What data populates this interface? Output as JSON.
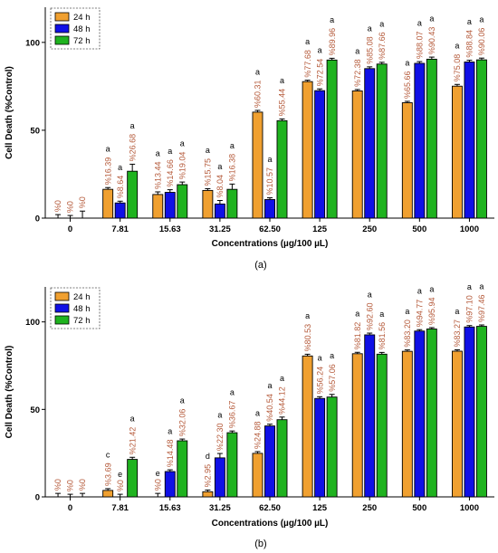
{
  "series_colors": [
    "#f0a030",
    "#1010e6",
    "#1fb31f"
  ],
  "chart_data": [
    {
      "type": "bar",
      "panel_label": "(a)",
      "ylabel": "Cell Death (%Control)",
      "xlabel": "Concentrations (µg/100 µL)",
      "ylim": [
        0,
        120
      ],
      "yticks": [
        0,
        50,
        100
      ],
      "legend_placement": "top-left",
      "categories": [
        "0",
        "7.81",
        "15.63",
        "31.25",
        "62.50",
        "125",
        "250",
        "500",
        "1000"
      ],
      "series": [
        {
          "name": "24 h",
          "values": [
            0,
            16.39,
            13.44,
            15.75,
            60.31,
            77.68,
            72.38,
            65.66,
            75.08
          ],
          "errors": [
            2,
            1,
            1.5,
            1,
            1,
            0.8,
            0.8,
            0.8,
            1
          ],
          "labels": [
            "%0",
            "%16.39",
            "%13.44",
            "%15.75",
            "%60.31",
            "%77.68",
            "%72.38",
            "%65.66",
            "%75.08"
          ],
          "letters": [
            "",
            "a",
            "a",
            "a",
            "a",
            "a",
            "a",
            "a",
            "a"
          ]
        },
        {
          "name": "48 h",
          "values": [
            0,
            8.64,
            14.66,
            8.04,
            10.57,
            72.54,
            85.08,
            88.07,
            88.84
          ],
          "errors": [
            1.5,
            1,
            1.5,
            2,
            1,
            1,
            1,
            1,
            1
          ],
          "labels": [
            "%0",
            "%8.64",
            "%14.66",
            "%8.04",
            "%10.57",
            "%72.54",
            "%85.08",
            "%88.07",
            "%88.84"
          ],
          "letters": [
            "",
            "a",
            "a",
            "a",
            "a",
            "a",
            "a",
            "a",
            "a"
          ]
        },
        {
          "name": "72 h",
          "values": [
            0,
            26.68,
            19.04,
            16.38,
            55.44,
            89.96,
            87.66,
            90.43,
            90.06
          ],
          "errors": [
            4,
            4,
            1.5,
            3,
            1,
            1,
            1,
            1.2,
            1
          ],
          "labels": [
            "%0",
            "%26.68",
            "%19.04",
            "%16.38",
            "%55.44",
            "%89.96",
            "%87.66",
            "%90.43",
            "%90.06"
          ],
          "letters": [
            "",
            "a",
            "a",
            "a",
            "a",
            "a",
            "a",
            "a",
            "a"
          ]
        }
      ]
    },
    {
      "type": "bar",
      "panel_label": "(b)",
      "ylabel": "Cell Death (%Control)",
      "xlabel": "Concentrations (µg/100 µL)",
      "ylim": [
        0,
        120
      ],
      "yticks": [
        0,
        50,
        100
      ],
      "legend_placement": "top-left",
      "categories": [
        "0",
        "7.81",
        "15.63",
        "31.25",
        "62.50",
        "125",
        "250",
        "500",
        "1000"
      ],
      "series": [
        {
          "name": "24 h",
          "values": [
            0,
            3.69,
            0,
            2.95,
            24.88,
            80.53,
            81.82,
            83.2,
            83.27
          ],
          "errors": [
            2,
            1,
            2,
            1,
            1,
            1,
            0.8,
            0.8,
            0.8
          ],
          "labels": [
            "%0",
            "%3.69",
            "%0",
            "%2.95",
            "%24.88",
            "%80.53",
            "%81.82",
            "%83.20",
            "%83.27"
          ],
          "letters": [
            "",
            "c",
            "e",
            "d",
            "a",
            "a",
            "a",
            "a",
            "a"
          ]
        },
        {
          "name": "48 h",
          "values": [
            0,
            0,
            14.48,
            22.3,
            40.54,
            56.24,
            92.6,
            94.77,
            97.1
          ],
          "errors": [
            1.5,
            1.5,
            1,
            2.5,
            1,
            1,
            1,
            0.8,
            0.8
          ],
          "labels": [
            "%0",
            "%0",
            "%14.48",
            "%22.30",
            "%40.54",
            "%56.24",
            "%92.60",
            "%94.77",
            "%97.10"
          ],
          "letters": [
            "",
            "e",
            "a",
            "a",
            "a",
            "a",
            "a",
            "a",
            "a"
          ]
        },
        {
          "name": "72 h",
          "values": [
            0,
            21.42,
            32.06,
            36.67,
            44.12,
            57.06,
            81.56,
            95.94,
            97.46
          ],
          "errors": [
            2,
            1.2,
            1,
            1,
            1.5,
            1.5,
            1,
            0.8,
            0.8
          ],
          "labels": [
            "%0",
            "%21.42",
            "%32.06",
            "%36.67",
            "%44.12",
            "%57.06",
            "%81.56",
            "%95.94",
            "%97.46"
          ],
          "letters": [
            "",
            "a",
            "a",
            "a",
            "a",
            "a",
            "a",
            "a",
            "a"
          ]
        }
      ]
    }
  ]
}
